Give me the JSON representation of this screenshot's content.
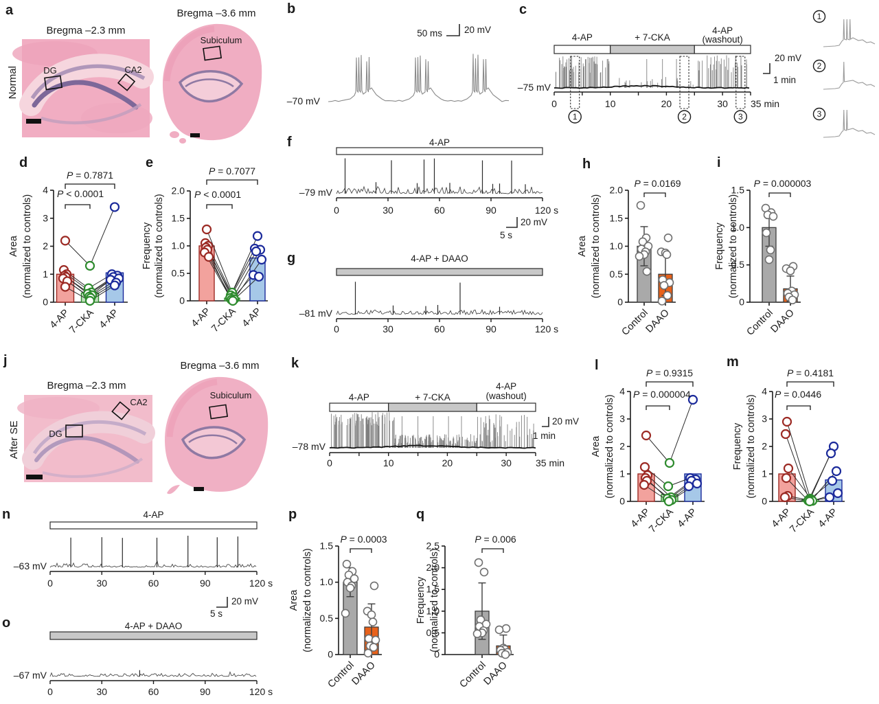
{
  "colors": {
    "red_fill": "#f2a29d",
    "red_stroke": "#9c2a24",
    "green_fill": "#c0dfbc",
    "green_stroke": "#2e8b2e",
    "blue_fill": "#a6c8e8",
    "blue_stroke": "#1b2a9b",
    "gray_fill": "#a9a9a9",
    "orange_fill": "#e8611a",
    "bar_edge": "#3d3d3d",
    "point_stroke": "#6f6f6f",
    "axis": "#1a1a1a",
    "trace": "#808080",
    "trace_dark": "#141414",
    "drug_gray": "#c8c8c8",
    "drug_white": "#ffffff"
  },
  "panels": {
    "a": {
      "letter": "a",
      "side_label": "Normal",
      "left_title": "Bregma –2.3 mm",
      "right_title": "Bregma –3.6 mm",
      "roi_dg": "DG",
      "roi_ca2": "CA2",
      "roi_sub": "Subiculum"
    },
    "b": {
      "letter": "b",
      "baseline": "–70 mV",
      "scale_h": "50 ms",
      "scale_v": "20 mV"
    },
    "c": {
      "letter": "c",
      "baseline": "–75 mV",
      "scale_v": "20 mV",
      "scale_h": "1 min",
      "drug_segments": [
        {
          "label": "4-AP",
          "from": 0,
          "to": 10,
          "fill": "white"
        },
        {
          "label": "+ 7-CKA",
          "from": 10,
          "to": 25,
          "fill": "gray"
        },
        {
          "label": "4-AP",
          "label2": "(washout)",
          "from": 25,
          "to": 35,
          "fill": "white"
        }
      ],
      "xticks": [
        {
          "t": 0,
          "label": "0"
        },
        {
          "t": 10,
          "label": "10"
        },
        {
          "t": 20,
          "label": "20"
        },
        {
          "t": 30,
          "label": "30"
        }
      ],
      "x_end_label": "35 min",
      "markers": [
        {
          "num": "1",
          "t": 3.7
        },
        {
          "num": "2",
          "t": 23.2
        },
        {
          "num": "3",
          "t": 33.2
        }
      ],
      "insets": [
        {
          "num": "1",
          "spikes": 3
        },
        {
          "num": "2",
          "spikes": 1
        },
        {
          "num": "3",
          "spikes": 2
        }
      ]
    },
    "d": {
      "letter": "d"
    },
    "e": {
      "letter": "e"
    },
    "f": {
      "letter": "f",
      "baseline": "–79 mV",
      "scale_v": "20 mV",
      "scale_h": "5 s",
      "drug_segments": [
        {
          "label": "4-AP",
          "from": 0,
          "to": 120,
          "fill": "white"
        }
      ],
      "xticks": [
        {
          "t": 0,
          "label": "0"
        },
        {
          "t": 30,
          "label": "30"
        },
        {
          "t": 60,
          "label": "60"
        },
        {
          "t": 90,
          "label": "90"
        }
      ],
      "x_end_label": "120 s",
      "big_spikes": [
        5,
        32,
        51,
        57,
        85,
        102
      ],
      "small_spikes": [
        23,
        47,
        66,
        91,
        95,
        110
      ]
    },
    "g": {
      "letter": "g",
      "baseline": "–81 mV",
      "drug_segments": [
        {
          "label": "4-AP + DAAO",
          "from": 0,
          "to": 120,
          "fill": "gray"
        }
      ],
      "xticks": [
        {
          "t": 0,
          "label": "0"
        },
        {
          "t": 30,
          "label": "30"
        },
        {
          "t": 60,
          "label": "60"
        },
        {
          "t": 90,
          "label": "90"
        }
      ],
      "x_end_label": "120 s",
      "big_spikes": [
        11,
        72
      ],
      "small_spikes": [
        33,
        52,
        59,
        95
      ]
    },
    "h": {
      "letter": "h"
    },
    "i": {
      "letter": "i"
    },
    "j": {
      "letter": "j",
      "side_label": "After SE",
      "left_title": "Bregma –2.3 mm",
      "right_title": "Bregma –3.6 mm",
      "roi_dg": "DG",
      "roi_ca2": "CA2",
      "roi_sub": "Subiculum"
    },
    "k": {
      "letter": "k",
      "baseline": "–78 mV",
      "scale_v": "20 mV",
      "scale_h": "1 min",
      "drug_segments": [
        {
          "label": "4-AP",
          "from": 0,
          "to": 10,
          "fill": "white"
        },
        {
          "label": "+ 7-CKA",
          "from": 10,
          "to": 25,
          "fill": "gray"
        },
        {
          "label": "4-AP",
          "label2": "(washout)",
          "from": 25,
          "to": 35,
          "fill": "white"
        }
      ],
      "xticks": [
        {
          "t": 0,
          "label": "0"
        },
        {
          "t": 10,
          "label": "10"
        },
        {
          "t": 20,
          "label": "20"
        },
        {
          "t": 30,
          "label": "30"
        }
      ],
      "x_end_label": "35 min"
    },
    "l": {
      "letter": "l"
    },
    "m": {
      "letter": "m"
    },
    "n": {
      "letter": "n",
      "baseline": "–63 mV",
      "scale_v": "20 mV",
      "scale_h": "5 s",
      "drug_segments": [
        {
          "label": "4-AP",
          "from": 0,
          "to": 120,
          "fill": "white"
        }
      ],
      "xticks": [
        {
          "t": 0,
          "label": "0"
        },
        {
          "t": 30,
          "label": "30"
        },
        {
          "t": 60,
          "label": "60"
        },
        {
          "t": 90,
          "label": "90"
        }
      ],
      "x_end_label": "120 s",
      "big_spikes": [
        12,
        30,
        42,
        62,
        80,
        97,
        109
      ],
      "small_spikes": []
    },
    "o": {
      "letter": "o",
      "baseline": "–67 mV",
      "drug_segments": [
        {
          "label": "4-AP + DAAO",
          "from": 0,
          "to": 120,
          "fill": "gray"
        }
      ],
      "xticks": [
        {
          "t": 0,
          "label": "0"
        },
        {
          "t": 30,
          "label": "30"
        },
        {
          "t": 60,
          "label": "60"
        },
        {
          "t": 90,
          "label": "90"
        }
      ],
      "x_end_label": "120 s",
      "big_spikes": [],
      "small_spikes": [
        52
      ]
    },
    "p": {
      "letter": "p"
    },
    "q": {
      "letter": "q"
    }
  },
  "chart_data": [
    {
      "panel": "d",
      "type": "bar+paired-scatter",
      "ylabel": [
        "Area",
        "(normalized to controls)"
      ],
      "ylim": [
        0,
        4
      ],
      "yticks": [
        0,
        1,
        2,
        3,
        4
      ],
      "ytick_labels": [
        "0",
        "1",
        "2",
        "3",
        "4"
      ],
      "categories": [
        "4-AP",
        "7-CKA",
        "4-AP"
      ],
      "bar_colors": [
        "red",
        "green",
        "blue"
      ],
      "bar_values": [
        1.0,
        0.33,
        1.05
      ],
      "paired_rows": [
        [
          2.2,
          1.3,
          3.4
        ],
        [
          1.15,
          0.5,
          1.0
        ],
        [
          1.0,
          0.35,
          0.95
        ],
        [
          0.95,
          0.3,
          0.9
        ],
        [
          0.9,
          0.25,
          0.85
        ],
        [
          0.85,
          0.2,
          0.8
        ],
        [
          0.75,
          0.15,
          0.7
        ],
        [
          0.55,
          0.05,
          0.6
        ]
      ],
      "pvalues": [
        {
          "text": "P < 0.0001",
          "from": 0,
          "to": 1,
          "pos": "inner"
        },
        {
          "text": "P = 0.7871",
          "from": 0,
          "to": 2,
          "pos": "outer"
        }
      ]
    },
    {
      "panel": "e",
      "type": "bar+paired-scatter",
      "ylabel": [
        "Frequency",
        "(normalized to controls)"
      ],
      "ylim": [
        0,
        2
      ],
      "yticks": [
        0,
        0.5,
        1,
        1.5,
        2
      ],
      "ytick_labels": [
        "0",
        "0.5",
        "1.0",
        "1.5",
        "2.0"
      ],
      "categories": [
        "4-AP",
        "7-CKA",
        "4-AP"
      ],
      "bar_colors": [
        "red",
        "green",
        "blue"
      ],
      "bar_values": [
        1.0,
        0.05,
        0.78
      ],
      "paired_rows": [
        [
          1.3,
          0.15,
          1.18
        ],
        [
          1.05,
          0.1,
          0.95
        ],
        [
          1.0,
          0.07,
          0.93
        ],
        [
          0.97,
          0.05,
          0.9
        ],
        [
          0.93,
          0.03,
          0.75
        ],
        [
          0.88,
          0.02,
          0.47
        ],
        [
          0.8,
          0.0,
          0.44
        ]
      ],
      "pvalues": [
        {
          "text": "P < 0.0001",
          "from": 0,
          "to": 1,
          "pos": "inner"
        },
        {
          "text": "P = 0.7077",
          "from": 0,
          "to": 2,
          "pos": "outer"
        }
      ]
    },
    {
      "panel": "h",
      "type": "bar+scatter",
      "ylabel": [
        "Area",
        "(normalized to controls)"
      ],
      "ylim": [
        0,
        2
      ],
      "yticks": [
        0,
        0.5,
        1,
        1.5,
        2
      ],
      "ytick_labels": [
        "0",
        "0.5",
        "1.0",
        "1.5",
        "2.0"
      ],
      "categories": [
        "Control",
        "DAAO"
      ],
      "bar_colors": [
        "gray",
        "orange"
      ],
      "bar_values": [
        1.0,
        0.5
      ],
      "bar_errors": [
        0.35,
        0.38
      ],
      "points": [
        [
          1.73,
          1.15,
          1.08,
          1.0,
          0.95,
          0.9,
          0.85,
          0.82,
          0.55
        ],
        [
          1.15,
          0.9,
          0.88,
          0.85,
          0.4,
          0.35,
          0.3,
          0.12,
          0.02
        ]
      ],
      "pvalue": "P = 0.0169"
    },
    {
      "panel": "i",
      "type": "bar+scatter",
      "ylabel": [
        "Frequency",
        "(normalized to controls)"
      ],
      "ylim": [
        0,
        1.5
      ],
      "yticks": [
        0,
        0.5,
        1,
        1.5
      ],
      "ytick_labels": [
        "0",
        "0.5",
        "1.0",
        "1.5"
      ],
      "categories": [
        "Control",
        "DAAO"
      ],
      "bar_colors": [
        "gray",
        "orange"
      ],
      "bar_values": [
        1.0,
        0.18
      ],
      "bar_errors": [
        0.25,
        0.17
      ],
      "points": [
        [
          1.26,
          1.2,
          1.17,
          1.15,
          0.93,
          0.7,
          0.57
        ],
        [
          0.48,
          0.45,
          0.42,
          0.15,
          0.12,
          0.1,
          0.07,
          0.03
        ]
      ],
      "pvalue": "P = 0.000003"
    },
    {
      "panel": "l",
      "type": "bar+paired-scatter",
      "ylabel": [
        "Area",
        "(normalized to controls)"
      ],
      "ylim": [
        0,
        4
      ],
      "yticks": [
        0,
        1,
        2,
        3,
        4
      ],
      "ytick_labels": [
        "0",
        "1",
        "2",
        "3",
        "4"
      ],
      "categories": [
        "4-AP",
        "7-CKA",
        "4-AP"
      ],
      "bar_colors": [
        "red",
        "green",
        "blue"
      ],
      "bar_values": [
        1.0,
        0.25,
        1.0
      ],
      "paired_rows": [
        [
          2.4,
          1.4,
          3.7
        ],
        [
          1.25,
          0.55,
          0.85
        ],
        [
          0.95,
          0.15,
          0.8
        ],
        [
          0.85,
          0.1,
          0.75
        ],
        [
          0.75,
          0.05,
          0.65
        ],
        [
          0.6,
          0.0,
          0.55
        ]
      ],
      "pvalues": [
        {
          "text": "P = 0.000004",
          "from": 0,
          "to": 1,
          "pos": "inner"
        },
        {
          "text": "P = 0.9315",
          "from": 0,
          "to": 2,
          "pos": "outer"
        }
      ]
    },
    {
      "panel": "m",
      "type": "bar+paired-scatter",
      "ylabel": [
        "Frequency",
        "(normalized to controls)"
      ],
      "ylim": [
        0,
        4
      ],
      "yticks": [
        0,
        1,
        2,
        3,
        4
      ],
      "ytick_labels": [
        "0",
        "1",
        "2",
        "3",
        "4"
      ],
      "categories": [
        "4-AP",
        "7-CKA",
        "4-AP"
      ],
      "bar_colors": [
        "red",
        "green",
        "blue"
      ],
      "bar_values": [
        1.0,
        0.07,
        0.78
      ],
      "paired_rows": [
        [
          2.9,
          0.1,
          2.0
        ],
        [
          2.45,
          0.07,
          1.75
        ],
        [
          1.2,
          0.05,
          1.1
        ],
        [
          0.85,
          0.03,
          0.75
        ],
        [
          0.2,
          0.02,
          0.3
        ],
        [
          0.15,
          0.0,
          0.15
        ]
      ],
      "pvalues": [
        {
          "text": "P = 0.0446",
          "from": 0,
          "to": 1,
          "pos": "inner"
        },
        {
          "text": "P = 0.4181",
          "from": 0,
          "to": 2,
          "pos": "outer"
        }
      ]
    },
    {
      "panel": "p",
      "type": "bar+scatter",
      "ylabel": [
        "Area",
        "(normalized to controls)"
      ],
      "ylim": [
        0,
        1.5
      ],
      "yticks": [
        0,
        0.5,
        1,
        1.5
      ],
      "ytick_labels": [
        "0",
        "0.5",
        "1.0",
        "1.5"
      ],
      "categories": [
        "Control",
        "DAAO"
      ],
      "bar_colors": [
        "gray",
        "orange"
      ],
      "bar_values": [
        1.0,
        0.38
      ],
      "bar_errors": [
        0.2,
        0.32
      ],
      "points": [
        [
          1.25,
          1.15,
          1.1,
          1.05,
          1.0,
          0.95,
          0.92,
          0.57
        ],
        [
          0.95,
          0.6,
          0.55,
          0.45,
          0.22,
          0.2,
          0.12,
          0.1,
          0.02
        ]
      ],
      "pvalue": "P = 0.0003"
    },
    {
      "panel": "q",
      "type": "bar+scatter",
      "ylabel": [
        "Frequency",
        "(normalized to controls)"
      ],
      "ylim": [
        0,
        2.5
      ],
      "yticks": [
        0,
        0.5,
        1,
        1.5,
        2,
        2.5
      ],
      "ytick_labels": [
        "0",
        "0.5",
        "1.0",
        "1.5",
        "2.0",
        "2.5"
      ],
      "categories": [
        "Control",
        "DAAO"
      ],
      "bar_colors": [
        "gray",
        "orange"
      ],
      "bar_values": [
        1.0,
        0.2
      ],
      "bar_errors": [
        0.65,
        0.25
      ],
      "points": [
        [
          2.12,
          1.9,
          0.8,
          0.7,
          0.65,
          0.55,
          0.5,
          0.48
        ],
        [
          0.6,
          0.57,
          0.15,
          0.12,
          0.1,
          0.05,
          0.03,
          0.0
        ]
      ],
      "pvalue": "P = 0.006"
    }
  ]
}
